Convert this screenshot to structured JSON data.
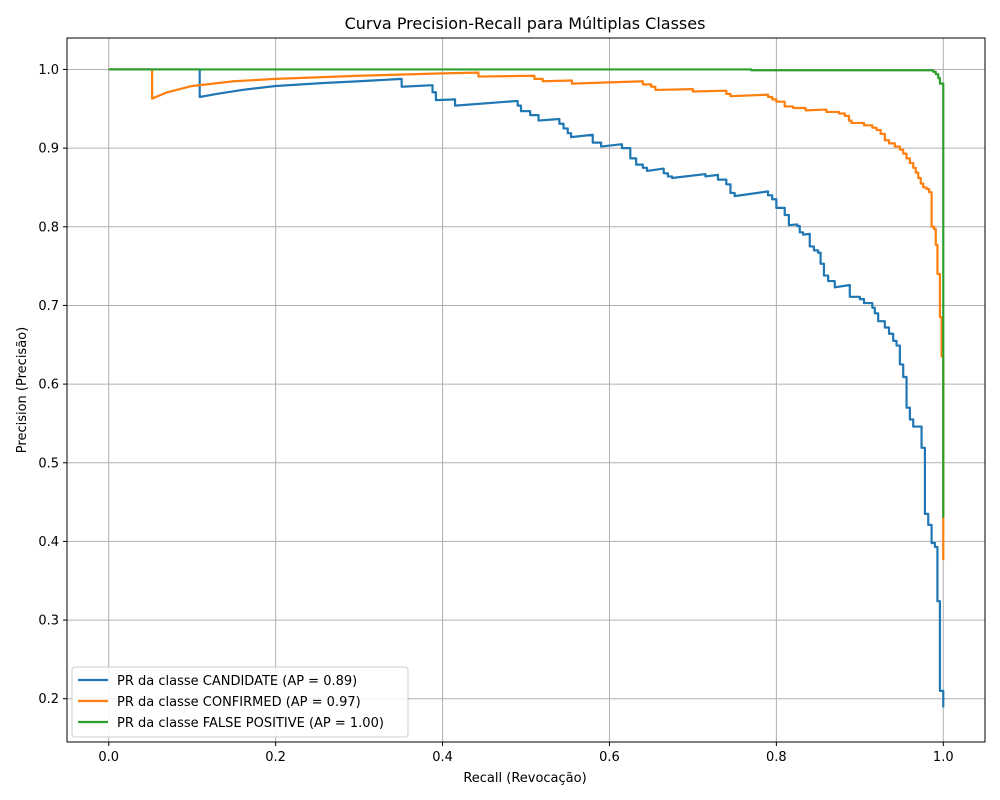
{
  "chart_data": {
    "type": "line",
    "title": "Curva Precision-Recall para Múltiplas Classes",
    "xlabel": "Recall (Revocação)",
    "ylabel": "Precision (Precisão)",
    "xlim": [
      -0.05,
      1.05
    ],
    "ylim": [
      0.145,
      1.04
    ],
    "xticks": [
      0.0,
      0.2,
      0.4,
      0.6,
      0.8,
      1.0
    ],
    "xtick_labels": [
      "0.0",
      "0.2",
      "0.4",
      "0.6",
      "0.8",
      "1.0"
    ],
    "yticks": [
      0.2,
      0.3,
      0.4,
      0.5,
      0.6,
      0.7,
      0.8,
      0.9,
      1.0
    ],
    "ytick_labels": [
      "0.2",
      "0.3",
      "0.4",
      "0.5",
      "0.6",
      "0.7",
      "0.8",
      "0.9",
      "1.0"
    ],
    "grid": true,
    "legend_position": "lower-left",
    "series": [
      {
        "name": "PR da classe CANDIDATE (AP = 0.89)",
        "color": "#1f77b4",
        "points": [
          [
            0,
            1.0
          ],
          [
            0.109,
            1.0
          ],
          [
            0.109,
            0.965
          ],
          [
            0.13,
            0.969
          ],
          [
            0.16,
            0.974
          ],
          [
            0.2,
            0.979
          ],
          [
            0.26,
            0.983
          ],
          [
            0.3,
            0.985
          ],
          [
            0.351,
            0.988
          ],
          [
            0.351,
            0.978
          ],
          [
            0.388,
            0.98
          ],
          [
            0.388,
            0.971
          ],
          [
            0.392,
            0.971
          ],
          [
            0.392,
            0.961
          ],
          [
            0.415,
            0.962
          ],
          [
            0.415,
            0.954
          ],
          [
            0.49,
            0.96
          ],
          [
            0.49,
            0.954
          ],
          [
            0.494,
            0.954
          ],
          [
            0.494,
            0.947
          ],
          [
            0.505,
            0.947
          ],
          [
            0.505,
            0.942
          ],
          [
            0.515,
            0.942
          ],
          [
            0.515,
            0.935
          ],
          [
            0.54,
            0.937
          ],
          [
            0.54,
            0.931
          ],
          [
            0.545,
            0.931
          ],
          [
            0.545,
            0.925
          ],
          [
            0.55,
            0.925
          ],
          [
            0.55,
            0.919
          ],
          [
            0.554,
            0.919
          ],
          [
            0.554,
            0.914
          ],
          [
            0.58,
            0.917
          ],
          [
            0.58,
            0.907
          ],
          [
            0.59,
            0.907
          ],
          [
            0.59,
            0.902
          ],
          [
            0.615,
            0.905
          ],
          [
            0.615,
            0.9
          ],
          [
            0.625,
            0.9
          ],
          [
            0.625,
            0.887
          ],
          [
            0.632,
            0.887
          ],
          [
            0.632,
            0.879
          ],
          [
            0.64,
            0.879
          ],
          [
            0.64,
            0.875
          ],
          [
            0.645,
            0.875
          ],
          [
            0.645,
            0.871
          ],
          [
            0.665,
            0.874
          ],
          [
            0.665,
            0.868
          ],
          [
            0.67,
            0.868
          ],
          [
            0.67,
            0.864
          ],
          [
            0.675,
            0.864
          ],
          [
            0.675,
            0.862
          ],
          [
            0.715,
            0.867
          ],
          [
            0.715,
            0.864
          ],
          [
            0.73,
            0.866
          ],
          [
            0.73,
            0.86
          ],
          [
            0.74,
            0.86
          ],
          [
            0.74,
            0.854
          ],
          [
            0.745,
            0.854
          ],
          [
            0.745,
            0.843
          ],
          [
            0.75,
            0.843
          ],
          [
            0.75,
            0.839
          ],
          [
            0.79,
            0.845
          ],
          [
            0.79,
            0.84
          ],
          [
            0.795,
            0.84
          ],
          [
            0.795,
            0.835
          ],
          [
            0.8,
            0.835
          ],
          [
            0.8,
            0.824
          ],
          [
            0.81,
            0.824
          ],
          [
            0.81,
            0.815
          ],
          [
            0.815,
            0.815
          ],
          [
            0.815,
            0.802
          ],
          [
            0.825,
            0.803
          ],
          [
            0.825,
            0.801
          ],
          [
            0.828,
            0.801
          ],
          [
            0.828,
            0.793
          ],
          [
            0.832,
            0.793
          ],
          [
            0.832,
            0.79
          ],
          [
            0.84,
            0.791
          ],
          [
            0.84,
            0.775
          ],
          [
            0.845,
            0.775
          ],
          [
            0.845,
            0.77
          ],
          [
            0.85,
            0.77
          ],
          [
            0.85,
            0.767
          ],
          [
            0.853,
            0.767
          ],
          [
            0.853,
            0.753
          ],
          [
            0.857,
            0.753
          ],
          [
            0.857,
            0.738
          ],
          [
            0.862,
            0.738
          ],
          [
            0.862,
            0.731
          ],
          [
            0.87,
            0.731
          ],
          [
            0.87,
            0.723
          ],
          [
            0.888,
            0.726
          ],
          [
            0.888,
            0.711
          ],
          [
            0.9,
            0.711
          ],
          [
            0.9,
            0.708
          ],
          [
            0.905,
            0.708
          ],
          [
            0.905,
            0.703
          ],
          [
            0.915,
            0.703
          ],
          [
            0.915,
            0.697
          ],
          [
            0.918,
            0.697
          ],
          [
            0.918,
            0.69
          ],
          [
            0.922,
            0.69
          ],
          [
            0.922,
            0.68
          ],
          [
            0.93,
            0.68
          ],
          [
            0.93,
            0.672
          ],
          [
            0.935,
            0.672
          ],
          [
            0.935,
            0.664
          ],
          [
            0.94,
            0.664
          ],
          [
            0.94,
            0.655
          ],
          [
            0.944,
            0.655
          ],
          [
            0.944,
            0.649
          ],
          [
            0.948,
            0.649
          ],
          [
            0.948,
            0.625
          ],
          [
            0.952,
            0.625
          ],
          [
            0.952,
            0.609
          ],
          [
            0.956,
            0.609
          ],
          [
            0.956,
            0.57
          ],
          [
            0.96,
            0.57
          ],
          [
            0.96,
            0.555
          ],
          [
            0.964,
            0.555
          ],
          [
            0.964,
            0.546
          ],
          [
            0.974,
            0.546
          ],
          [
            0.974,
            0.519
          ],
          [
            0.978,
            0.519
          ],
          [
            0.978,
            0.435
          ],
          [
            0.982,
            0.435
          ],
          [
            0.982,
            0.421
          ],
          [
            0.986,
            0.421
          ],
          [
            0.986,
            0.398
          ],
          [
            0.99,
            0.398
          ],
          [
            0.99,
            0.393
          ],
          [
            0.993,
            0.393
          ],
          [
            0.993,
            0.324
          ],
          [
            0.996,
            0.324
          ],
          [
            0.996,
            0.21
          ],
          [
            1.0,
            0.21
          ],
          [
            1.0,
            0.189
          ]
        ]
      },
      {
        "name": "PR da classe CONFIRMED (AP = 0.97)",
        "color": "#ff7f0e",
        "points": [
          [
            0,
            1.0
          ],
          [
            0.052,
            1.0
          ],
          [
            0.052,
            0.963
          ],
          [
            0.07,
            0.971
          ],
          [
            0.1,
            0.979
          ],
          [
            0.15,
            0.985
          ],
          [
            0.2,
            0.988
          ],
          [
            0.3,
            0.992
          ],
          [
            0.4,
            0.995
          ],
          [
            0.443,
            0.996
          ],
          [
            0.443,
            0.991
          ],
          [
            0.51,
            0.992
          ],
          [
            0.51,
            0.988
          ],
          [
            0.52,
            0.988
          ],
          [
            0.52,
            0.985
          ],
          [
            0.555,
            0.986
          ],
          [
            0.555,
            0.982
          ],
          [
            0.64,
            0.985
          ],
          [
            0.64,
            0.981
          ],
          [
            0.65,
            0.981
          ],
          [
            0.65,
            0.978
          ],
          [
            0.655,
            0.978
          ],
          [
            0.655,
            0.974
          ],
          [
            0.7,
            0.975
          ],
          [
            0.7,
            0.972
          ],
          [
            0.74,
            0.973
          ],
          [
            0.74,
            0.969
          ],
          [
            0.745,
            0.969
          ],
          [
            0.745,
            0.966
          ],
          [
            0.79,
            0.968
          ],
          [
            0.79,
            0.965
          ],
          [
            0.795,
            0.965
          ],
          [
            0.795,
            0.962
          ],
          [
            0.8,
            0.962
          ],
          [
            0.8,
            0.959
          ],
          [
            0.81,
            0.959
          ],
          [
            0.81,
            0.953
          ],
          [
            0.82,
            0.953
          ],
          [
            0.82,
            0.951
          ],
          [
            0.835,
            0.951
          ],
          [
            0.835,
            0.948
          ],
          [
            0.86,
            0.949
          ],
          [
            0.86,
            0.946
          ],
          [
            0.875,
            0.946
          ],
          [
            0.875,
            0.944
          ],
          [
            0.882,
            0.944
          ],
          [
            0.882,
            0.941
          ],
          [
            0.887,
            0.941
          ],
          [
            0.887,
            0.935
          ],
          [
            0.89,
            0.935
          ],
          [
            0.89,
            0.932
          ],
          [
            0.905,
            0.932
          ],
          [
            0.905,
            0.929
          ],
          [
            0.915,
            0.929
          ],
          [
            0.915,
            0.926
          ],
          [
            0.92,
            0.926
          ],
          [
            0.92,
            0.923
          ],
          [
            0.925,
            0.923
          ],
          [
            0.925,
            0.918
          ],
          [
            0.93,
            0.918
          ],
          [
            0.93,
            0.91
          ],
          [
            0.935,
            0.91
          ],
          [
            0.935,
            0.906
          ],
          [
            0.942,
            0.906
          ],
          [
            0.942,
            0.902
          ],
          [
            0.948,
            0.902
          ],
          [
            0.948,
            0.898
          ],
          [
            0.952,
            0.898
          ],
          [
            0.952,
            0.893
          ],
          [
            0.956,
            0.893
          ],
          [
            0.956,
            0.887
          ],
          [
            0.96,
            0.887
          ],
          [
            0.96,
            0.881
          ],
          [
            0.964,
            0.881
          ],
          [
            0.964,
            0.875
          ],
          [
            0.967,
            0.875
          ],
          [
            0.967,
            0.869
          ],
          [
            0.97,
            0.869
          ],
          [
            0.97,
            0.862
          ],
          [
            0.973,
            0.862
          ],
          [
            0.973,
            0.855
          ],
          [
            0.976,
            0.855
          ],
          [
            0.976,
            0.85
          ],
          [
            0.98,
            0.85
          ],
          [
            0.98,
            0.848
          ],
          [
            0.983,
            0.848
          ],
          [
            0.983,
            0.844
          ],
          [
            0.986,
            0.844
          ],
          [
            0.986,
            0.8
          ],
          [
            0.989,
            0.8
          ],
          [
            0.989,
            0.797
          ],
          [
            0.991,
            0.797
          ],
          [
            0.991,
            0.777
          ],
          [
            0.993,
            0.777
          ],
          [
            0.993,
            0.74
          ],
          [
            0.996,
            0.74
          ],
          [
            0.996,
            0.685
          ],
          [
            0.998,
            0.685
          ],
          [
            0.998,
            0.635
          ],
          [
            1.0,
            0.635
          ],
          [
            1.0,
            0.376
          ]
        ]
      },
      {
        "name": "PR da classe FALSE POSITIVE (AP = 1.00)",
        "color": "#2ca02c",
        "points": [
          [
            0,
            1.0
          ],
          [
            0.77,
            1.0
          ],
          [
            0.77,
            0.999
          ],
          [
            0.988,
            0.999
          ],
          [
            0.988,
            0.997
          ],
          [
            0.991,
            0.997
          ],
          [
            0.991,
            0.994
          ],
          [
            0.994,
            0.994
          ],
          [
            0.994,
            0.989
          ],
          [
            0.996,
            0.989
          ],
          [
            0.996,
            0.982
          ],
          [
            1.0,
            0.982
          ],
          [
            1.0,
            0.43
          ]
        ]
      }
    ]
  }
}
